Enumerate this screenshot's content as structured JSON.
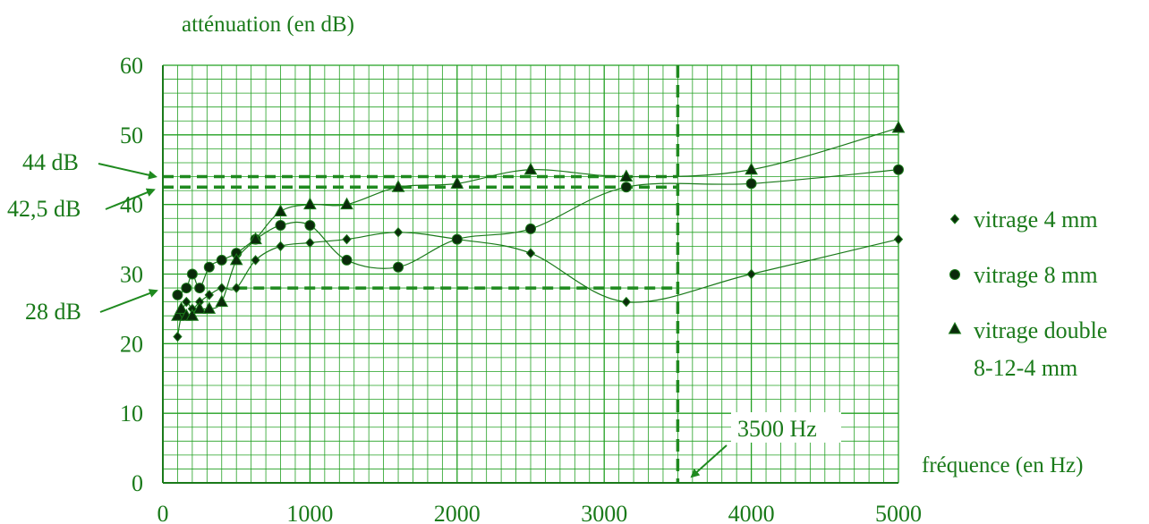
{
  "colors": {
    "grid": "#22a022",
    "ink": "#1a7a1a",
    "marker": "#0b2a0b",
    "ref": "#1f8a1f"
  },
  "chart_data": {
    "type": "line",
    "ylabel": "atténuation (en dB)",
    "xlabel": "fréquence (en Hz)",
    "xlim": [
      0,
      5000
    ],
    "ylim": [
      0,
      60
    ],
    "x_ticks": [
      "0",
      "1000",
      "2000",
      "3000",
      "4000",
      "5000"
    ],
    "y_ticks": [
      "0",
      "10",
      "20",
      "30",
      "40",
      "50",
      "60"
    ],
    "grid": true,
    "legend_position": "right",
    "series": [
      {
        "name": "vitrage 4 mm",
        "marker": "diamond",
        "points": [
          [
            100,
            21
          ],
          [
            125,
            24
          ],
          [
            160,
            26
          ],
          [
            200,
            25
          ],
          [
            250,
            26
          ],
          [
            315,
            27
          ],
          [
            400,
            28
          ],
          [
            500,
            28
          ],
          [
            630,
            32
          ],
          [
            800,
            34
          ],
          [
            1000,
            34.5
          ],
          [
            1250,
            35
          ],
          [
            1600,
            36
          ],
          [
            2000,
            35
          ],
          [
            2500,
            33
          ],
          [
            3150,
            26
          ],
          [
            4000,
            30
          ],
          [
            5000,
            35
          ]
        ]
      },
      {
        "name": "vitrage 8 mm",
        "marker": "circle",
        "points": [
          [
            100,
            27
          ],
          [
            160,
            28
          ],
          [
            200,
            30
          ],
          [
            250,
            28
          ],
          [
            315,
            31
          ],
          [
            400,
            32
          ],
          [
            500,
            33
          ],
          [
            630,
            35
          ],
          [
            800,
            37
          ],
          [
            1000,
            37
          ],
          [
            1250,
            32
          ],
          [
            1600,
            31
          ],
          [
            2000,
            35
          ],
          [
            2500,
            36.5
          ],
          [
            3150,
            42.5
          ],
          [
            4000,
            43
          ],
          [
            5000,
            45
          ]
        ]
      },
      {
        "name": "vitrage double 8-12-4 mm",
        "name_lines": [
          "vitrage double",
          "8-12-4 mm"
        ],
        "marker": "triangle",
        "points": [
          [
            100,
            24
          ],
          [
            125,
            25
          ],
          [
            160,
            24
          ],
          [
            200,
            24
          ],
          [
            250,
            25
          ],
          [
            315,
            25
          ],
          [
            400,
            26
          ],
          [
            500,
            32
          ],
          [
            630,
            35
          ],
          [
            800,
            39
          ],
          [
            1000,
            40
          ],
          [
            1250,
            40
          ],
          [
            1600,
            42.5
          ],
          [
            2000,
            43
          ],
          [
            2500,
            45
          ],
          [
            3150,
            44
          ],
          [
            4000,
            45
          ],
          [
            5000,
            51
          ]
        ]
      }
    ],
    "reference_lines": [
      {
        "orientation": "horizontal",
        "value": 44,
        "label": "44 dB"
      },
      {
        "orientation": "horizontal",
        "value": 42.5,
        "label": "42,5 dB"
      },
      {
        "orientation": "horizontal",
        "value": 28,
        "label": "28 dB"
      },
      {
        "orientation": "vertical",
        "value": 3500,
        "label": "3500 Hz"
      }
    ]
  }
}
